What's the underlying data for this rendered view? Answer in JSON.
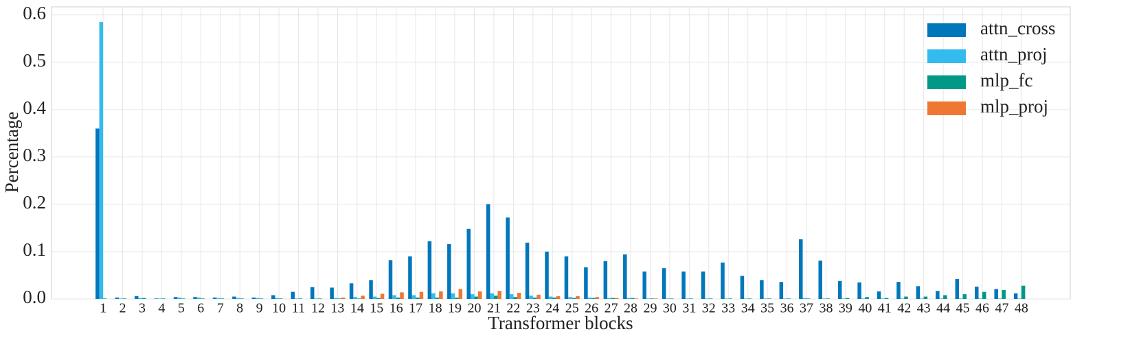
{
  "chart_data": {
    "type": "bar",
    "xlabel": "Transformer blocks",
    "ylabel": "Percentage",
    "categories": [
      "1",
      "2",
      "3",
      "4",
      "5",
      "6",
      "7",
      "8",
      "9",
      "10",
      "11",
      "12",
      "13",
      "14",
      "15",
      "16",
      "17",
      "18",
      "19",
      "20",
      "21",
      "22",
      "23",
      "24",
      "25",
      "26",
      "27",
      "28",
      "29",
      "30",
      "31",
      "32",
      "33",
      "34",
      "35",
      "36",
      "37",
      "38",
      "39",
      "40",
      "41",
      "42",
      "43",
      "44",
      "45",
      "46",
      "47",
      "48"
    ],
    "series": [
      {
        "name": "attn_cross",
        "color": "#0077bb",
        "values": [
          0.36,
          0.003,
          0.006,
          0.001,
          0.004,
          0.004,
          0.003,
          0.005,
          0.003,
          0.008,
          0.015,
          0.025,
          0.024,
          0.033,
          0.04,
          0.082,
          0.09,
          0.122,
          0.116,
          0.148,
          0.2,
          0.172,
          0.119,
          0.1,
          0.09,
          0.067,
          0.08,
          0.094,
          0.058,
          0.065,
          0.058,
          0.058,
          0.077,
          0.049,
          0.04,
          0.036,
          0.126,
          0.081,
          0.038,
          0.035,
          0.016,
          0.036,
          0.027,
          0.017,
          0.042,
          0.026,
          0.021,
          0.012
        ]
      },
      {
        "name": "attn_proj",
        "color": "#33bbee",
        "values": [
          0.585,
          0.001,
          0.002,
          0.001,
          0.003,
          0.003,
          0.002,
          0.002,
          0.002,
          0.002,
          0.001,
          0.001,
          0.002,
          0.004,
          0.005,
          0.008,
          0.008,
          0.012,
          0.012,
          0.01,
          0.012,
          0.01,
          0.007,
          0.005,
          0.004,
          0.003,
          0.002,
          0.002,
          0.001,
          0.001,
          0.001,
          0.001,
          0.001,
          0.001,
          0.001,
          0.001,
          0.002,
          0.001,
          0.001,
          0.001,
          0.001,
          0.001,
          0.001,
          0.001,
          0.001,
          0.001,
          0.001,
          0.001
        ]
      },
      {
        "name": "mlp_fc",
        "color": "#009988",
        "values": [
          0.001,
          0.001,
          0.002,
          0.001,
          0.001,
          0.001,
          0.001,
          0.001,
          0.001,
          0.001,
          0.001,
          0.001,
          0.001,
          0.001,
          0.002,
          0.003,
          0.003,
          0.003,
          0.003,
          0.005,
          0.007,
          0.004,
          0.003,
          0.003,
          0.002,
          0.002,
          0.002,
          0.002,
          0.001,
          0.001,
          0.001,
          0.001,
          0.001,
          0.001,
          0.001,
          0.001,
          0.001,
          0.001,
          0.002,
          0.004,
          0.002,
          0.005,
          0.005,
          0.008,
          0.01,
          0.015,
          0.019,
          0.028
        ]
      },
      {
        "name": "mlp_proj",
        "color": "#ee7733",
        "values": [
          0,
          0,
          0,
          0,
          0,
          0,
          0,
          0,
          0,
          0,
          0,
          0,
          0.003,
          0.007,
          0.011,
          0.014,
          0.015,
          0.016,
          0.021,
          0.016,
          0.017,
          0.013,
          0.009,
          0.006,
          0.006,
          0.004,
          0.002,
          0.001,
          0.001,
          0,
          0,
          0,
          0,
          0,
          0,
          0,
          0,
          0,
          0,
          0,
          0,
          0,
          0,
          0,
          0,
          0,
          0,
          0
        ]
      }
    ],
    "ylim": [
      0,
      0.617
    ],
    "yticks": [
      {
        "value": 0,
        "label": "0.0"
      },
      0.1,
      0.2,
      0.3,
      0.4,
      0.5,
      0.6
    ],
    "grid": true,
    "legend": "upper right"
  }
}
